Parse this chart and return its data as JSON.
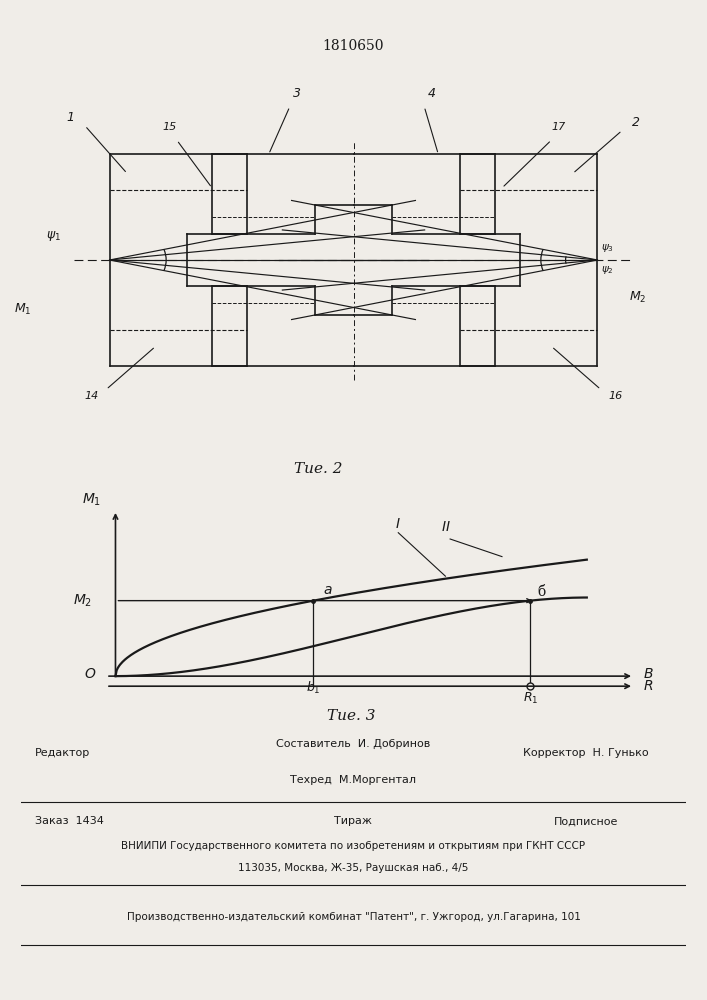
{
  "title": "1810650",
  "fig2_caption": "Τие. 2",
  "fig3_caption": "Τие. 3",
  "background_color": "#f0ede8",
  "line_color": "#1a1a1a",
  "label_1": "1",
  "label_2": "2",
  "label_3": "3",
  "label_4": "4",
  "label_14": "14",
  "label_15": "15",
  "label_16": "16",
  "label_17": "17",
  "footer_redaktor": "Редактор",
  "footer_sostavitel": "Составитель  И. Добринов",
  "footer_tehred": "Техред  М.Моргентал",
  "footer_korrektor": "Корректор  Н. Гунько",
  "footer_zakaz": "Заказ  1434",
  "footer_tirazh": "Тираж",
  "footer_podpisnoe": "Подписное",
  "footer_vniipи": "ВНИИПИ Государственного комитета по изобретениям и открытиям при ГКНТ СССР",
  "footer_address": "113035, Москва, Ж-35, Раушская наб., 4/5",
  "footer_kombinat": "Производственно-издательский комбинат \"Патент\", г. Ужгород, ул.Гагарина, 101"
}
